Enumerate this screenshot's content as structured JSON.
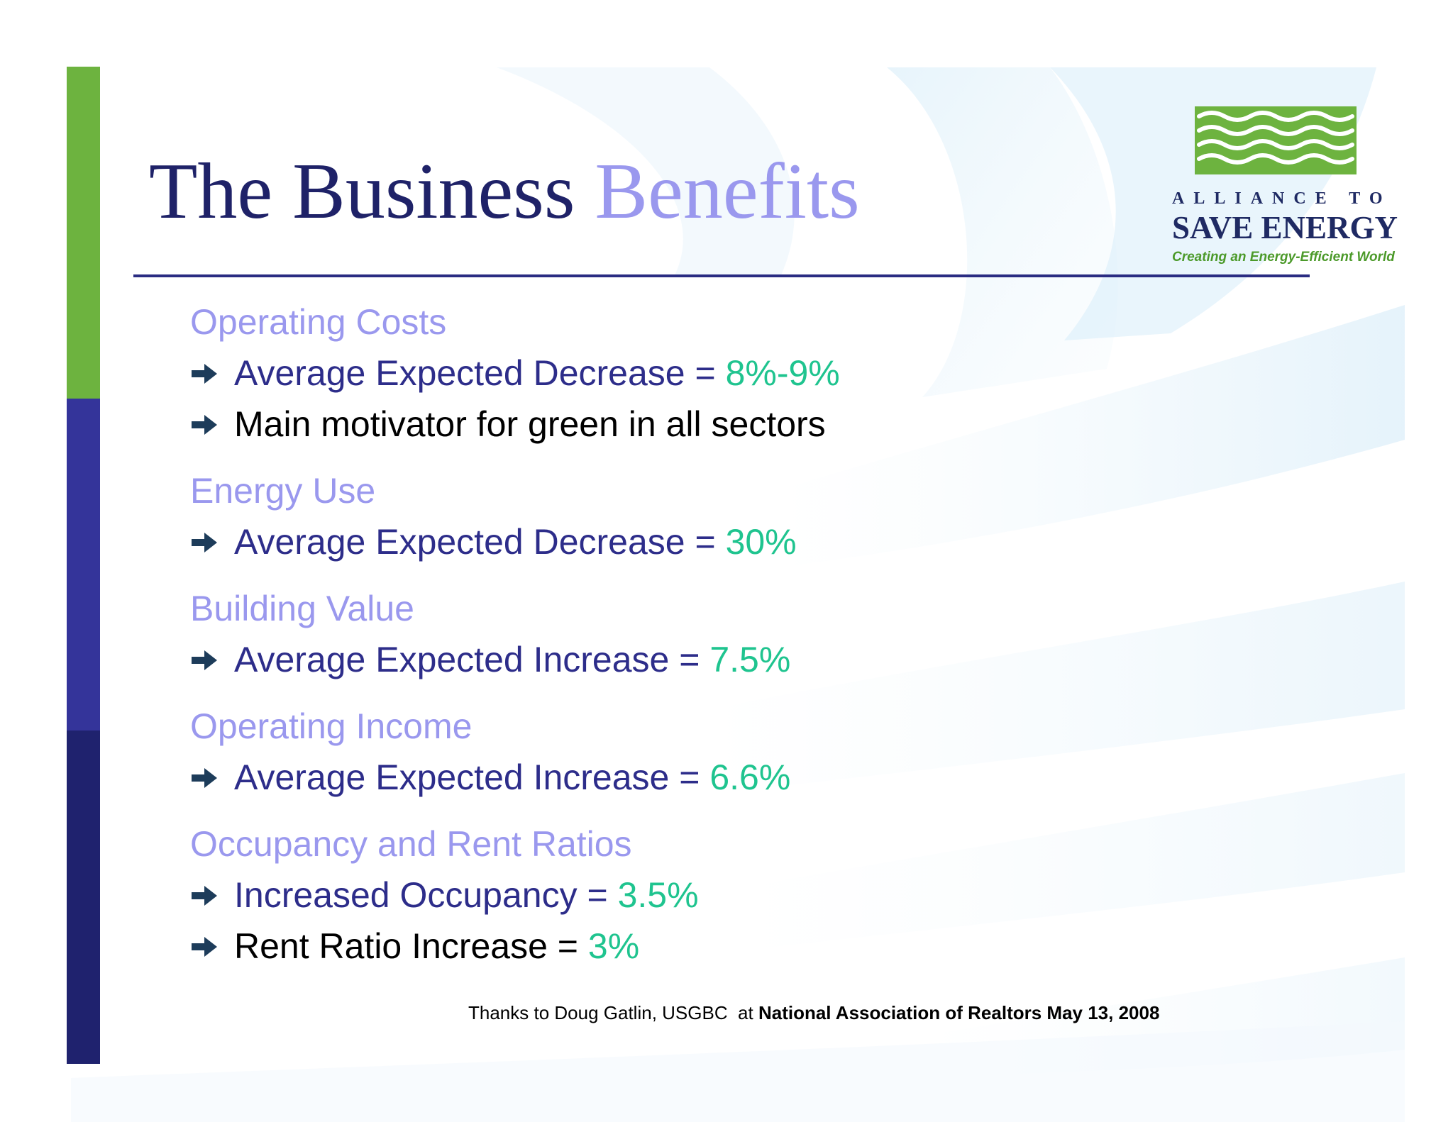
{
  "title": {
    "main": "The Business",
    "accent": "Benefits"
  },
  "logo": {
    "line1": "ALLIANCE TO",
    "line2": "SAVE ENERGY",
    "tagline": "Creating an Energy-Efficient World"
  },
  "sections": [
    {
      "heading": "Operating Costs",
      "bullets": [
        {
          "text": "Average Expected Decrease = ",
          "value": "8%-9%"
        },
        {
          "text": "Main motivator for green in all sectors",
          "value": ""
        }
      ]
    },
    {
      "heading": "Energy Use",
      "bullets": [
        {
          "text": "Average Expected Decrease = ",
          "value": "30%"
        }
      ]
    },
    {
      "heading": "Building Value",
      "bullets": [
        {
          "text": "Average Expected Increase = ",
          "value": "7.5%"
        }
      ]
    },
    {
      "heading": "Operating Income",
      "bullets": [
        {
          "text": "Average Expected Increase = ",
          "value": "6.6%"
        }
      ]
    },
    {
      "heading": "Occupancy and Rent Ratios",
      "bullets": [
        {
          "text": "Increased Occupancy = ",
          "value": "3.5%"
        },
        {
          "text": "Rent Ratio Increase = ",
          "value": "3%"
        }
      ]
    }
  ],
  "footer": {
    "prefix": "Thanks to Doug Gatlin, USGBC  at ",
    "bold": "National Association of Realtors May 13, 2008"
  },
  "colors": {
    "title_dark": "#1f2268",
    "accent_lavender": "#9a98ee",
    "bullet_blue": "#2d2d8a",
    "value_green": "#1fc48f",
    "bar_green": "#6db33f",
    "bar_blue": "#34349a",
    "bar_navy": "#1f226e",
    "logo_green": "#6db33f",
    "arrow": "#1d3c5a"
  },
  "icons": {
    "bullet": "right-arrow-icon",
    "logo": "waves-logo-icon"
  }
}
